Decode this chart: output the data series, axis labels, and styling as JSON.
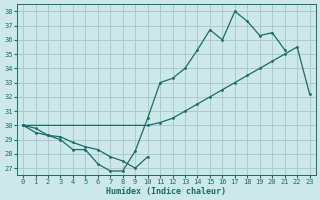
{
  "xlabel": "Humidex (Indice chaleur)",
  "xlim": [
    -0.5,
    23.5
  ],
  "ylim": [
    26.5,
    38.5
  ],
  "xticks": [
    0,
    1,
    2,
    3,
    4,
    5,
    6,
    7,
    8,
    9,
    10,
    11,
    12,
    13,
    14,
    15,
    16,
    17,
    18,
    19,
    20,
    21,
    22,
    23
  ],
  "yticks": [
    27,
    28,
    29,
    30,
    31,
    32,
    33,
    34,
    35,
    36,
    37,
    38
  ],
  "bg_color": "#cce8e8",
  "grid_color": "#aacccc",
  "line_color": "#1a6b6b",
  "lines": [
    {
      "x": [
        0,
        1,
        2,
        3,
        4,
        5,
        6,
        7,
        8,
        9,
        10,
        11,
        12,
        13,
        14,
        15,
        16,
        17,
        18,
        19,
        20,
        21
      ],
      "y": [
        30.0,
        29.5,
        29.3,
        29.0,
        28.3,
        28.3,
        27.3,
        26.8,
        26.8,
        28.2,
        30.5,
        33.0,
        33.3,
        34.0,
        35.3,
        36.7,
        36.0,
        38.0,
        37.3,
        36.3,
        36.5,
        35.3
      ]
    },
    {
      "x": [
        0,
        1,
        2,
        3,
        4,
        5,
        6,
        7,
        8,
        9,
        10
      ],
      "y": [
        30.0,
        29.8,
        29.3,
        29.2,
        28.8,
        28.5,
        28.3,
        27.8,
        27.5,
        27.0,
        27.8
      ]
    },
    {
      "x": [
        0,
        10,
        11,
        12,
        13,
        14,
        15,
        16,
        17,
        18,
        19,
        20,
        21,
        22,
        23
      ],
      "y": [
        30.0,
        30.0,
        30.2,
        30.5,
        31.0,
        31.5,
        32.0,
        32.5,
        33.0,
        33.5,
        34.0,
        34.5,
        35.0,
        35.5,
        32.2
      ]
    }
  ]
}
